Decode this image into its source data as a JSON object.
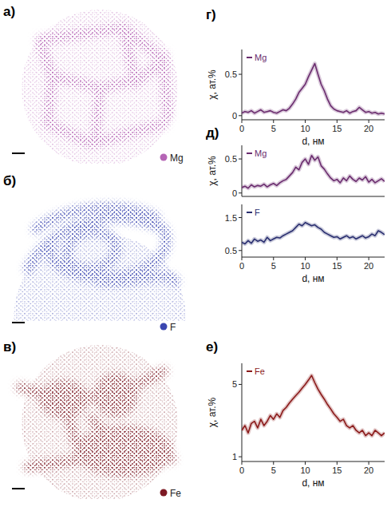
{
  "image_panels": [
    {
      "label": "а)",
      "legend": "Mg",
      "color": "#b565b5"
    },
    {
      "label": "б)",
      "legend": "F",
      "color": "#3a46b0"
    },
    {
      "label": "в)",
      "legend": "Fe",
      "color": "#7d1a24"
    }
  ],
  "chart_data": [
    {
      "type": "line",
      "title": "г)",
      "x": [
        0,
        0.5,
        1,
        1.5,
        2,
        2.5,
        3,
        3.5,
        4,
        4.5,
        5,
        5.5,
        6,
        6.5,
        7,
        7.5,
        8,
        8.5,
        9,
        9.5,
        10,
        10.5,
        11,
        11.5,
        12,
        12.5,
        13,
        13.5,
        14,
        14.5,
        15,
        15.5,
        16,
        16.5,
        17,
        17.5,
        18,
        18.5,
        19,
        19.5,
        20,
        20.5,
        21,
        21.5,
        22,
        22.5
      ],
      "series": [
        {
          "name": "Mg",
          "color": "#6a2c6e",
          "values": [
            0.03,
            0.05,
            0.04,
            0.06,
            0.03,
            0.05,
            0.07,
            0.04,
            0.05,
            0.06,
            0.04,
            0.03,
            0.05,
            0.07,
            0.06,
            0.09,
            0.14,
            0.2,
            0.28,
            0.33,
            0.38,
            0.47,
            0.55,
            0.63,
            0.5,
            0.38,
            0.3,
            0.2,
            0.12,
            0.08,
            0.06,
            0.05,
            0.04,
            0.06,
            0.03,
            0.05,
            0.06,
            0.1,
            0.07,
            0.04,
            0.05,
            0.03,
            0.04,
            0.02,
            0.03,
            0.02
          ]
        }
      ],
      "xlim": [
        0,
        22.5
      ],
      "xticks": [
        0,
        5,
        10,
        15,
        20
      ],
      "ylim": [
        -0.05,
        0.8
      ],
      "yticks": [
        0,
        0.5
      ],
      "x_label": "d, нм",
      "y_label": "χ, ат.%",
      "grid": false
    },
    {
      "type": "line",
      "title": "д)",
      "x": [
        0,
        0.5,
        1,
        1.5,
        2,
        2.5,
        3,
        3.5,
        4,
        4.5,
        5,
        5.5,
        6,
        6.5,
        7,
        7.5,
        8,
        8.5,
        9,
        9.5,
        10,
        10.5,
        11,
        11.5,
        12,
        12.5,
        13,
        13.5,
        14,
        14.5,
        15,
        15.5,
        16,
        16.5,
        17,
        17.5,
        18,
        18.5,
        19,
        19.5,
        20,
        20.5,
        21,
        21.5,
        22,
        22.5
      ],
      "series": [
        {
          "name": "Mg",
          "color": "#6a2c6e",
          "values": [
            0.08,
            0.1,
            0.07,
            0.12,
            0.09,
            0.11,
            0.1,
            0.13,
            0.09,
            0.12,
            0.14,
            0.11,
            0.15,
            0.18,
            0.2,
            0.25,
            0.3,
            0.38,
            0.34,
            0.45,
            0.5,
            0.42,
            0.55,
            0.48,
            0.53,
            0.4,
            0.35,
            0.28,
            0.22,
            0.18,
            0.2,
            0.15,
            0.22,
            0.18,
            0.25,
            0.2,
            0.17,
            0.22,
            0.19,
            0.24,
            0.16,
            0.2,
            0.15,
            0.18,
            0.21,
            0.17
          ]
        }
      ],
      "xlim": [
        0,
        22.5
      ],
      "ylim": [
        -0.05,
        0.7
      ],
      "yticks": [
        0,
        0.5
      ],
      "y_label": "χ, ат.%",
      "tick_labels": "y",
      "grid": false
    },
    {
      "type": "line",
      "x": [
        0,
        0.5,
        1,
        1.5,
        2,
        2.5,
        3,
        3.5,
        4,
        4.5,
        5,
        5.5,
        6,
        6.5,
        7,
        7.5,
        8,
        8.5,
        9,
        9.5,
        10,
        10.5,
        11,
        11.5,
        12,
        12.5,
        13,
        13.5,
        14,
        14.5,
        15,
        15.5,
        16,
        16.5,
        17,
        17.5,
        18,
        18.5,
        19,
        19.5,
        20,
        20.5,
        21,
        21.5,
        22,
        22.5
      ],
      "series": [
        {
          "name": "F",
          "color": "#2a2f70",
          "values": [
            0.75,
            0.7,
            0.8,
            0.72,
            0.85,
            0.78,
            0.82,
            0.75,
            0.9,
            0.8,
            0.85,
            0.9,
            0.88,
            0.95,
            1.0,
            1.05,
            1.1,
            1.2,
            1.3,
            1.25,
            1.35,
            1.3,
            1.25,
            1.28,
            1.2,
            1.15,
            1.05,
            1.0,
            0.95,
            0.9,
            0.92,
            0.85,
            0.9,
            0.95,
            0.88,
            0.92,
            0.85,
            0.9,
            0.95,
            0.88,
            0.92,
            1.0,
            0.95,
            1.1,
            1.05,
            0.98
          ]
        }
      ],
      "xlim": [
        0,
        22.5
      ],
      "xticks": [
        0,
        5,
        10,
        15,
        20
      ],
      "ylim": [
        0.3,
        1.9
      ],
      "yticks": [
        0.5,
        1.5
      ],
      "x_label": "d, нм",
      "grid": false
    },
    {
      "type": "line",
      "title": "е)",
      "x": [
        0,
        0.5,
        1,
        1.5,
        2,
        2.5,
        3,
        3.5,
        4,
        4.5,
        5,
        5.5,
        6,
        6.5,
        7,
        7.5,
        8,
        8.5,
        9,
        9.5,
        10,
        10.5,
        11,
        11.5,
        12,
        12.5,
        13,
        13.5,
        14,
        14.5,
        15,
        15.5,
        16,
        16.5,
        17,
        17.5,
        18,
        18.5,
        19,
        19.5,
        20,
        20.5,
        21,
        21.5,
        22,
        22.5
      ],
      "series": [
        {
          "name": "Fe",
          "color": "#8b1a1a",
          "values": [
            1.8,
            2.0,
            1.7,
            2.1,
            2.2,
            1.9,
            2.3,
            2.0,
            2.2,
            2.5,
            2.3,
            2.6,
            2.4,
            2.8,
            3.0,
            3.3,
            3.6,
            3.9,
            4.2,
            4.6,
            5.0,
            5.5,
            6.1,
            5.2,
            4.5,
            4.0,
            3.6,
            3.2,
            2.9,
            2.6,
            2.4,
            2.2,
            2.3,
            2.0,
            1.9,
            2.0,
            1.8,
            1.7,
            1.8,
            1.6,
            1.7,
            1.6,
            1.8,
            1.7,
            1.6,
            1.7
          ]
        }
      ],
      "xlim": [
        0,
        22.5
      ],
      "xticks": [
        0,
        5,
        10,
        15,
        20
      ],
      "ylim": [
        0.9,
        8
      ],
      "yticks": [
        1,
        5
      ],
      "log": "y",
      "x_label": "d, нм",
      "y_label": "χ, ат.%",
      "grid": false
    }
  ]
}
